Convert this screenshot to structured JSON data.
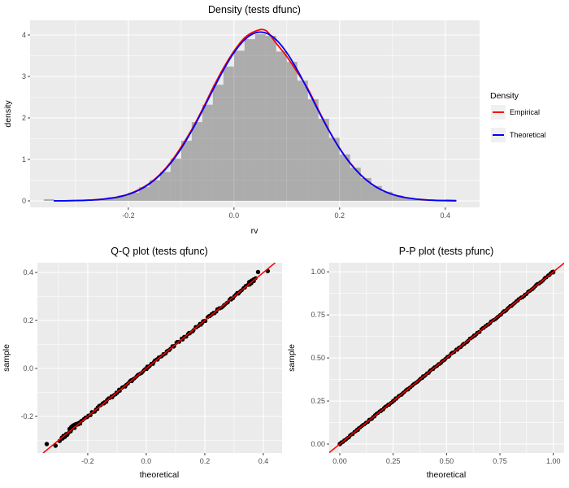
{
  "style": {
    "figure_bg": "#FFFFFF",
    "panel_bg": "#EBEBEB",
    "grid_color": "#FFFFFF",
    "tick_mark_color": "#333333",
    "tick_label_color": "#4D4D4D",
    "text_color": "#000000",
    "legend_key_bg": "#F0F0F0",
    "histogram_fill": "#464646",
    "histogram_alpha": 0.38,
    "point_color": "#000000",
    "identity_line_color": "#FF0000"
  },
  "chart_data": [
    {
      "type": "bar",
      "subtype": "histogram-with-density-curves",
      "title": "Density (tests dfunc)",
      "xlabel": "rv",
      "ylabel": "density",
      "x_domain": [
        -0.386,
        0.465
      ],
      "y_domain": [
        -0.157,
        4.353
      ],
      "x_ticks": {
        "values": [
          -0.2,
          0.0,
          0.2,
          0.4
        ],
        "labels": [
          "-0.2",
          "0.0",
          "0.2",
          "0.4"
        ],
        "minor": [
          -0.3,
          -0.1,
          0.1,
          0.3
        ]
      },
      "y_ticks": {
        "values": [
          0,
          1,
          2,
          3,
          4
        ],
        "labels": [
          "0",
          "1",
          "2",
          "3",
          "4"
        ],
        "minor": [
          0.5,
          1.5,
          2.5,
          3.5
        ]
      },
      "grid": true,
      "histogram": {
        "binwidth": 0.02,
        "centers": [
          -0.35,
          -0.33,
          -0.31,
          -0.29,
          -0.27,
          -0.25,
          -0.23,
          -0.21,
          -0.19,
          -0.17,
          -0.15,
          -0.13,
          -0.11,
          -0.09,
          -0.07,
          -0.05,
          -0.03,
          -0.01,
          0.01,
          0.03,
          0.05,
          0.07,
          0.09,
          0.11,
          0.13,
          0.15,
          0.17,
          0.19,
          0.21,
          0.23,
          0.25,
          0.27,
          0.29,
          0.31,
          0.33,
          0.35,
          0.37,
          0.39,
          0.41
        ],
        "densities": [
          0.04,
          0,
          0,
          0.02,
          0.03,
          0.05,
          0.09,
          0.13,
          0.2,
          0.33,
          0.5,
          0.7,
          1.02,
          1.45,
          1.9,
          2.32,
          2.8,
          3.24,
          3.62,
          3.9,
          4.02,
          3.98,
          3.6,
          3.35,
          2.9,
          2.45,
          1.98,
          1.52,
          1.12,
          0.8,
          0.55,
          0.36,
          0.22,
          0.13,
          0.08,
          0.05,
          0.02,
          0.015,
          0.04
        ]
      },
      "series": [
        {
          "name": "Empirical",
          "color": "#FF0000",
          "x": [
            -0.34,
            -0.32,
            -0.3,
            -0.28,
            -0.26,
            -0.24,
            -0.22,
            -0.2,
            -0.18,
            -0.16,
            -0.14,
            -0.12,
            -0.1,
            -0.08,
            -0.06,
            -0.04,
            -0.02,
            0.0,
            0.02,
            0.04,
            0.06,
            0.08,
            0.1,
            0.12,
            0.14,
            0.16,
            0.18,
            0.2,
            0.22,
            0.24,
            0.26,
            0.28,
            0.3,
            0.32,
            0.34,
            0.36,
            0.38,
            0.4,
            0.42
          ],
          "y": [
            0.001,
            0.003,
            0.008,
            0.016,
            0.03,
            0.055,
            0.096,
            0.163,
            0.27,
            0.425,
            0.64,
            0.93,
            1.3,
            1.72,
            2.2,
            2.72,
            3.2,
            3.61,
            3.93,
            4.09,
            4.11,
            3.8,
            3.48,
            3.1,
            2.7,
            2.19,
            1.7,
            1.27,
            0.915,
            0.63,
            0.415,
            0.262,
            0.158,
            0.092,
            0.05,
            0.026,
            0.013,
            0.006,
            0.003
          ]
        },
        {
          "name": "Theoretical",
          "color": "#0000FF",
          "x": [
            -0.34,
            -0.32,
            -0.3,
            -0.28,
            -0.26,
            -0.24,
            -0.22,
            -0.2,
            -0.18,
            -0.16,
            -0.14,
            -0.12,
            -0.1,
            -0.08,
            -0.06,
            -0.04,
            -0.02,
            0.0,
            0.02,
            0.04,
            0.06,
            0.08,
            0.1,
            0.12,
            0.14,
            0.16,
            0.18,
            0.2,
            0.22,
            0.24,
            0.26,
            0.28,
            0.3,
            0.32,
            0.34,
            0.36,
            0.38,
            0.4,
            0.42
          ],
          "y": [
            0.002,
            0.003,
            0.007,
            0.014,
            0.027,
            0.051,
            0.091,
            0.157,
            0.259,
            0.41,
            0.622,
            0.905,
            1.262,
            1.689,
            2.168,
            2.67,
            3.154,
            3.574,
            3.884,
            4.049,
            4.049,
            3.884,
            3.574,
            3.154,
            2.67,
            2.168,
            1.689,
            1.262,
            0.905,
            0.622,
            0.41,
            0.259,
            0.157,
            0.091,
            0.051,
            0.027,
            0.014,
            0.007,
            0.003
          ]
        }
      ],
      "legend": {
        "title": "Density",
        "position": "right",
        "items": [
          {
            "label": "Empirical",
            "color": "#FF0000"
          },
          {
            "label": "Theoretical",
            "color": "#0000FF"
          }
        ]
      }
    },
    {
      "type": "scatter",
      "subtype": "qq",
      "title": "Q-Q plot (tests qfunc)",
      "xlabel": "theoretical",
      "ylabel": "sample",
      "x_domain": [
        -0.372,
        0.464
      ],
      "y_domain": [
        -0.3525,
        0.4407
      ],
      "x_ticks": {
        "values": [
          -0.2,
          0.0,
          0.2,
          0.4
        ],
        "labels": [
          "-0.2",
          "0.0",
          "0.2",
          "0.4"
        ],
        "minor": [
          -0.3,
          -0.1,
          0.1,
          0.3
        ]
      },
      "y_ticks": {
        "values": [
          -0.2,
          0.0,
          0.2,
          0.4
        ],
        "labels": [
          "-0.2",
          "0.0",
          "0.2",
          "0.4"
        ],
        "minor": [
          -0.3,
          -0.1,
          0.1,
          0.3
        ]
      },
      "grid": true,
      "points": {
        "color": "#000000",
        "radius": 2.4,
        "band": {
          "x_min": -0.288,
          "x_max": 0.372,
          "n": 150,
          "jitter": 0.005,
          "relation": "y=x"
        },
        "extra": [
          [
            -0.34,
            -0.315
          ],
          [
            -0.31,
            -0.322
          ],
          [
            -0.296,
            -0.302
          ],
          [
            -0.286,
            -0.292
          ],
          [
            -0.278,
            -0.285
          ],
          [
            -0.27,
            -0.276
          ],
          [
            -0.262,
            -0.252
          ],
          [
            -0.256,
            -0.244
          ],
          [
            -0.25,
            -0.238
          ],
          [
            -0.244,
            -0.234
          ],
          [
            -0.238,
            -0.231
          ],
          [
            -0.232,
            -0.229
          ],
          [
            0.352,
            0.36
          ],
          [
            0.36,
            0.366
          ],
          [
            0.367,
            0.371
          ],
          [
            0.382,
            0.402
          ],
          [
            0.415,
            0.406
          ]
        ]
      },
      "identity_line": {
        "color": "#FF0000",
        "slope": 1,
        "intercept": 0
      }
    },
    {
      "type": "scatter",
      "subtype": "pp",
      "title": "P-P plot (tests pfunc)",
      "xlabel": "theoretical",
      "ylabel": "sample",
      "x_domain": [
        -0.0495,
        1.0506
      ],
      "y_domain": [
        -0.052,
        1.053
      ],
      "x_ticks": {
        "values": [
          0,
          0.25,
          0.5,
          0.75,
          1
        ],
        "labels": [
          "0.00",
          "0.25",
          "0.50",
          "0.75",
          "1.00"
        ],
        "minor": [
          0.125,
          0.375,
          0.625,
          0.875
        ]
      },
      "y_ticks": {
        "values": [
          0,
          0.25,
          0.5,
          0.75,
          1
        ],
        "labels": [
          "0.00",
          "0.25",
          "0.50",
          "0.75",
          "1.00"
        ],
        "minor": [
          0.125,
          0.375,
          0.625,
          0.875
        ]
      },
      "grid": true,
      "points": {
        "color": "#000000",
        "radius": 2.4,
        "band": {
          "x_min": 0.002,
          "x_max": 0.998,
          "n": 170,
          "jitter": 0.004,
          "relation": "y=x"
        },
        "extra": [
          [
            0.0,
            0.0
          ],
          [
            0.004,
            0.004
          ],
          [
            0.996,
            0.999
          ],
          [
            1.0,
            1.0
          ]
        ]
      },
      "identity_line": {
        "color": "#FF0000",
        "slope": 1,
        "intercept": 0
      }
    }
  ]
}
